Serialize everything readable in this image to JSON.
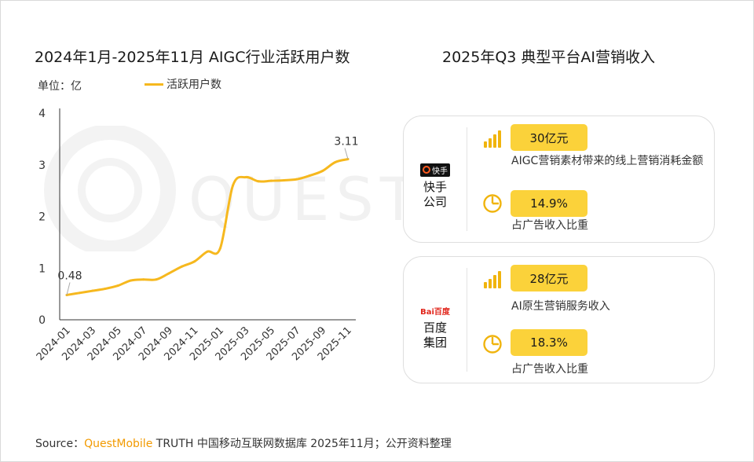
{
  "left_chart": {
    "title": "2024年1月-2025年11月 AIGC行业活跃用户数",
    "unit_label": "单位：亿"
  },
  "right_panel": {
    "title": "2025年Q3 典型平台AI营销收入",
    "cards": [
      {
        "logo_text": "快手",
        "company": [
          "快手",
          "公司"
        ],
        "metric1_value": "30亿元",
        "metric1_desc": "AIGC营销素材带来的线上营销消耗金额",
        "metric2_value": "14.9%",
        "metric2_desc": "占广告收入比重"
      },
      {
        "logo_text": "Bai百度",
        "company": [
          "百度",
          "集团"
        ],
        "metric1_value": "28亿元",
        "metric1_desc": "AI原生营销服务收入",
        "metric2_value": "18.3%",
        "metric2_desc": "占广告收入比重"
      }
    ]
  },
  "watermark": "QUESTMOBILE",
  "source": {
    "prefix": "Source：",
    "brand": "QuestMobile",
    "text": " TRUTH 中国移动互联网数据库 2025年11月；公开资料整理"
  },
  "colors": {
    "line": "#F6B81E",
    "pill": "#FBD23A",
    "icon": "#F0B40E"
  },
  "chart_data": {
    "type": "line",
    "title": "2024年1月-2025年11月 AIGC行业活跃用户数",
    "ylabel": "单位：亿",
    "ylim": [
      0,
      4
    ],
    "yticks": [
      0,
      1,
      2,
      3,
      4
    ],
    "x": [
      "2024-01",
      "2024-02",
      "2024-03",
      "2024-04",
      "2024-05",
      "2024-06",
      "2024-07",
      "2024-08",
      "2024-09",
      "2024-10",
      "2024-11",
      "2024-12",
      "2025-01",
      "2025-02",
      "2025-03",
      "2025-04",
      "2025-05",
      "2025-06",
      "2025-07",
      "2025-08",
      "2025-09",
      "2025-10",
      "2025-11"
    ],
    "xticks": [
      "2024-01",
      "2024-03",
      "2024-05",
      "2024-07",
      "2024-09",
      "2024-11",
      "2025-01",
      "2025-03",
      "2025-05",
      "2025-07",
      "2025-09",
      "2025-11"
    ],
    "series": [
      {
        "name": "活跃用户数",
        "values": [
          0.48,
          0.52,
          0.56,
          0.6,
          0.66,
          0.76,
          0.78,
          0.78,
          0.9,
          1.03,
          1.13,
          1.32,
          1.38,
          2.6,
          2.76,
          2.68,
          2.69,
          2.7,
          2.72,
          2.79,
          2.88,
          3.05,
          3.11
        ]
      }
    ],
    "data_labels": [
      {
        "x": "2024-01",
        "text": "0.48"
      },
      {
        "x": "2025-11",
        "text": "3.11"
      }
    ],
    "legend_position": "top",
    "grid": false
  }
}
